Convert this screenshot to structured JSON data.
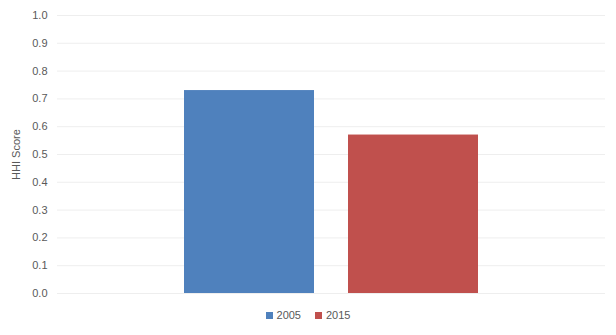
{
  "chart_data": {
    "type": "bar",
    "ylabel": "HHI Score",
    "categories": [
      null
    ],
    "series": [
      {
        "name": "2005",
        "color": "#4f81bd",
        "values": [
          0.73
        ]
      },
      {
        "name": "2015",
        "color": "#c0504d",
        "values": [
          0.57
        ]
      }
    ],
    "ylim": [
      0,
      1
    ],
    "yticks": [
      {
        "value": 0,
        "label": "0.0"
      },
      0.1,
      0.2,
      0.3,
      0.4,
      0.5,
      0.6,
      0.7,
      0.8,
      0.9,
      {
        "value": 1,
        "label": "1.0"
      }
    ],
    "grid": true,
    "legend": "bottom"
  }
}
